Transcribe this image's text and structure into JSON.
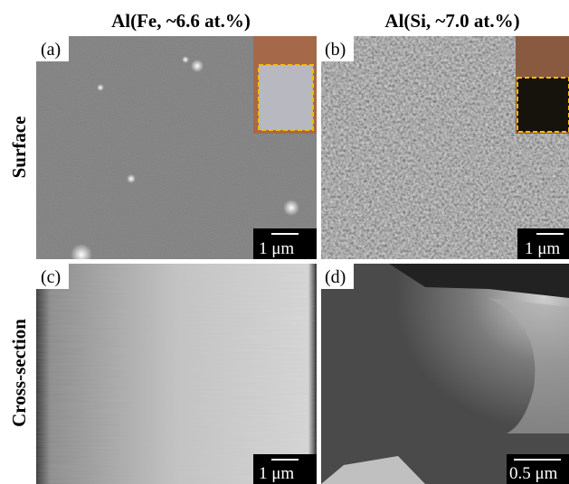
{
  "column_titles": [
    "Al(Fe, ~6.6 at.%)",
    "Al(Si, ~7.0 at.%)"
  ],
  "row_labels": [
    "Surface",
    "Cross-section"
  ],
  "panels": [
    {
      "label": "(a)",
      "scale_bar": "1 μm"
    },
    {
      "label": "(b)",
      "scale_bar": "1 μm"
    },
    {
      "label": "(c)",
      "scale_bar": "1 μm"
    },
    {
      "label": "(d)",
      "scale_bar": "0.5 μm"
    }
  ]
}
